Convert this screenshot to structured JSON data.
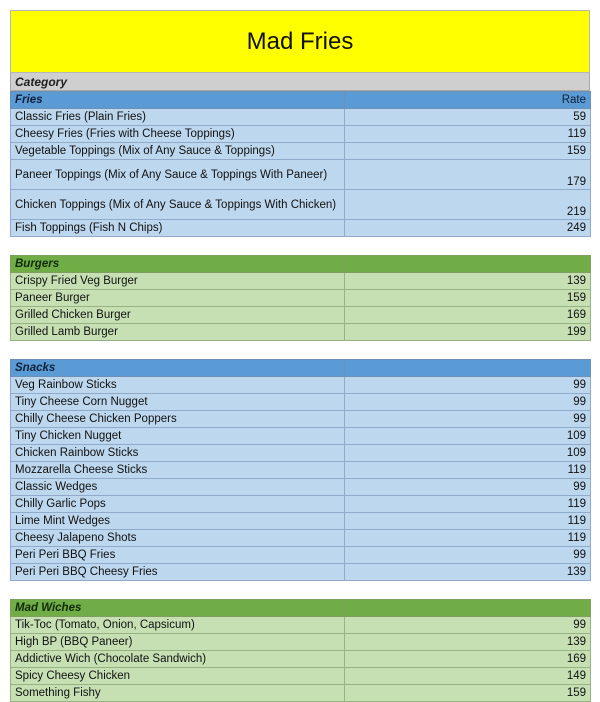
{
  "title": "Mad Fries",
  "category_label": "Category",
  "sections": {
    "fries": {
      "name": "Fries",
      "rate_label": "Rate",
      "items": [
        {
          "name": "Classic Fries (Plain Fries)",
          "rate": "59"
        },
        {
          "name": "Cheesy Fries (Fries with Cheese Toppings)",
          "rate": "119"
        },
        {
          "name": "Vegetable Toppings (Mix of Any Sauce & Toppings)",
          "rate": "159"
        },
        {
          "name": "Paneer Toppings (Mix of Any Sauce & Toppings With Paneer)",
          "rate": "179"
        },
        {
          "name": "Chicken Toppings (Mix of Any Sauce & Toppings With Chicken)",
          "rate": "219"
        },
        {
          "name": "Fish Toppings (Fish N Chips)",
          "rate": "249"
        }
      ]
    },
    "burgers": {
      "name": "Burgers",
      "items": [
        {
          "name": "Crispy Fried Veg Burger",
          "rate": "139"
        },
        {
          "name": "Paneer Burger",
          "rate": "159"
        },
        {
          "name": "Grilled Chicken Burger",
          "rate": "169"
        },
        {
          "name": "Grilled Lamb Burger",
          "rate": "199"
        }
      ]
    },
    "snacks": {
      "name": "Snacks",
      "items": [
        {
          "name": "Veg Rainbow Sticks",
          "rate": "99"
        },
        {
          "name": "Tiny Cheese Corn Nugget",
          "rate": "99"
        },
        {
          "name": "Chilly Cheese Chicken Poppers",
          "rate": "99"
        },
        {
          "name": "Tiny Chicken Nugget",
          "rate": "109"
        },
        {
          "name": "Chicken Rainbow Sticks",
          "rate": "109"
        },
        {
          "name": "Mozzarella Cheese Sticks",
          "rate": "119"
        },
        {
          "name": "Classic Wedges",
          "rate": "99"
        },
        {
          "name": "Chilly Garlic Pops",
          "rate": "119"
        },
        {
          "name": "Lime Mint Wedges",
          "rate": "119"
        },
        {
          "name": "Cheesy Jalapeno Shots",
          "rate": "119"
        },
        {
          "name": "Peri Peri BBQ Fries",
          "rate": "99"
        },
        {
          "name": "Peri Peri BBQ Cheesy Fries",
          "rate": "139"
        }
      ]
    },
    "madwiches": {
      "name": "Mad Wiches",
      "items": [
        {
          "name": "Tik-Toc (Tomato, Onion, Capsicum)",
          "rate": "99"
        },
        {
          "name": "High BP (BBQ Paneer)",
          "rate": "139"
        },
        {
          "name": "Addictive Wich (Chocolate Sandwich)",
          "rate": "169"
        },
        {
          "name": "Spicy Cheesy Chicken",
          "rate": "149"
        },
        {
          "name": "Something Fishy",
          "rate": "159"
        }
      ]
    }
  },
  "colors": {
    "title_bg": "#ffff00",
    "blue_header": "#5b9bd5",
    "blue_row": "#bdd7ee",
    "green_header": "#70ad47",
    "green_row": "#c6e0b4"
  }
}
